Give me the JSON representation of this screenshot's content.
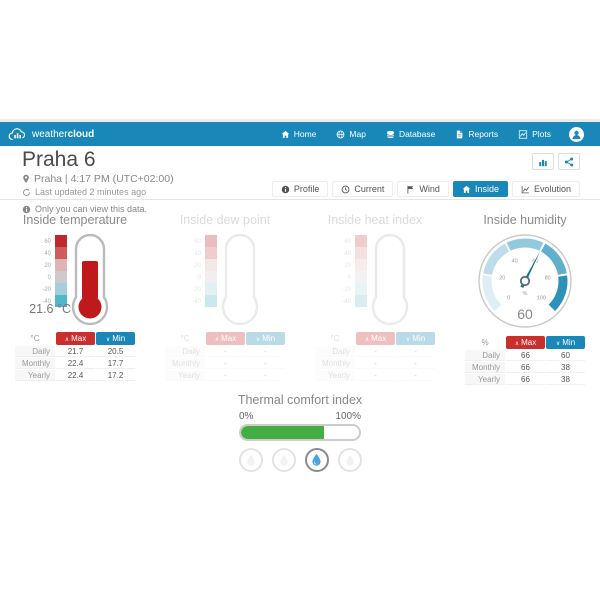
{
  "colors": {
    "navbar_blue": "#1a87b9",
    "accent_blue": "#1a87b9",
    "max_red": "#c9302c",
    "min_blue": "#1a87b9",
    "thermometer_red": "#c0191c",
    "progress_green": "#44ad44",
    "needle_blue": "#16709b",
    "gauge_segments": [
      "#ddeef4",
      "#bcdde9",
      "#93c9dd",
      "#5fafcd",
      "#2d91b8"
    ],
    "thermo_scale_segments": [
      "#c0282d",
      "#cf5c5c",
      "#ddb3b3",
      "#cfc9cc",
      "#a3cfdd",
      "#53b7c9"
    ]
  },
  "icons": {
    "brand": "cloud-logo",
    "nav": [
      "home",
      "globe-map",
      "database-stack",
      "report-file",
      "line-plots",
      "user-avatar"
    ],
    "header_actions": [
      "bar-chart",
      "share"
    ],
    "meta": [
      "location-pin",
      "refresh",
      "info"
    ],
    "tabs": [
      "info",
      "clock",
      "flag",
      "home",
      "line-chart"
    ],
    "comfort_active": "water-droplet"
  },
  "navbar": {
    "brand_weather": "weather",
    "brand_cloud": "cloud",
    "items": [
      {
        "label": "Home"
      },
      {
        "label": "Map"
      },
      {
        "label": "Database"
      },
      {
        "label": "Reports"
      },
      {
        "label": "Plots"
      }
    ]
  },
  "header": {
    "title": "Praha 6",
    "location": "Praha | 4:17 PM (UTC+02:00)",
    "updated": "Last updated 2 minutes ago",
    "notice": "Only you can view this data.",
    "tabs": [
      {
        "label": "Profile",
        "active": false
      },
      {
        "label": "Current",
        "active": false
      },
      {
        "label": "Wind",
        "active": false
      },
      {
        "label": "Inside",
        "active": true
      },
      {
        "label": "Evolution",
        "active": false
      }
    ]
  },
  "panels": {
    "temperature": {
      "title": "Inside temperature",
      "current_value": "21.6 °C",
      "scale_labels": [
        "60",
        "40",
        "20",
        "0",
        "-20",
        "-40"
      ],
      "table": {
        "unit": "°C",
        "max_label": "Max",
        "min_label": "Min",
        "rows": [
          {
            "label": "Daily",
            "max": "21.7",
            "min": "20.5"
          },
          {
            "label": "Monthly",
            "max": "22.4",
            "min": "17.7"
          },
          {
            "label": "Yearly",
            "max": "22.4",
            "min": "17.2"
          }
        ]
      }
    },
    "dew_point": {
      "title": "Inside dew point",
      "scale_labels": [
        "60",
        "40",
        "20",
        "0",
        "-20",
        "-40"
      ],
      "table": {
        "unit": "°C",
        "max_label": "Max",
        "min_label": "Min",
        "rows": [
          {
            "label": "Daily",
            "max": "-",
            "min": "-"
          },
          {
            "label": "Monthly",
            "max": "-",
            "min": "-"
          },
          {
            "label": "Yearly",
            "max": "-",
            "min": "-"
          }
        ]
      }
    },
    "heat_index": {
      "title": "Inside heat index",
      "scale_labels": [
        "60",
        "40",
        "20",
        "0",
        "-20",
        "-40"
      ],
      "table": {
        "unit": "°C",
        "max_label": "Max",
        "min_label": "Min",
        "rows": [
          {
            "label": "Daily",
            "max": "-",
            "min": "-"
          },
          {
            "label": "Monthly",
            "max": "-",
            "min": "-"
          },
          {
            "label": "Yearly",
            "max": "-",
            "min": "-"
          }
        ]
      }
    },
    "humidity": {
      "title": "Inside humidity",
      "value": "60",
      "unit": "%",
      "gauge_labels": [
        "0",
        "20",
        "40",
        "60",
        "80",
        "100"
      ],
      "table": {
        "unit": "%",
        "max_label": "Max",
        "min_label": "Min",
        "rows": [
          {
            "label": "Daily",
            "max": "66",
            "min": "60"
          },
          {
            "label": "Monthly",
            "max": "66",
            "min": "38"
          },
          {
            "label": "Yearly",
            "max": "66",
            "min": "38"
          }
        ]
      }
    }
  },
  "comfort": {
    "title": "Thermal comfort index",
    "left_label": "0%",
    "right_label": "100%",
    "progress_percent": 70
  }
}
